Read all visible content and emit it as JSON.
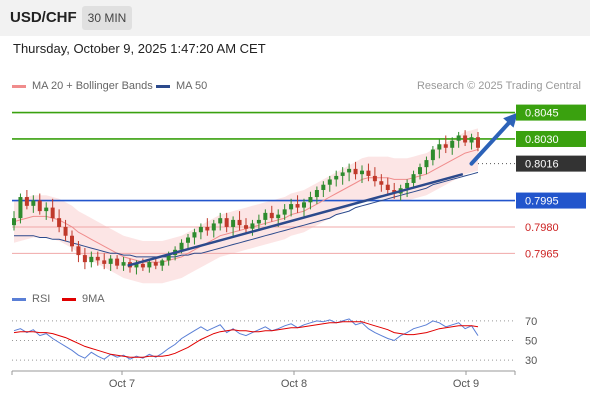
{
  "header": {
    "symbol": "USD/CHF",
    "timeframe": "30 MIN"
  },
  "datetime": "Thursday, October 9, 2025 1:47:20 AM CET",
  "legend": {
    "ma20": {
      "label": "MA 20 + Bollinger Bands",
      "color": "#f08c8c"
    },
    "ma50": {
      "label": "MA 50",
      "color": "#2c4a8c"
    }
  },
  "copyright": "Research © 2025 Trading Central",
  "rsi_legend": {
    "rsi": {
      "label": "RSI",
      "color": "#5a7fd6"
    },
    "ma9": {
      "label": "9MA",
      "color": "#e00000"
    }
  },
  "chart_data": [
    {
      "type": "candlestick",
      "pair": "USD/CHF",
      "ylim": [
        0.7947,
        0.8055
      ],
      "current_price": "0.8016",
      "x_labels": [
        "Oct 7",
        "Oct 8",
        "Oct 9"
      ],
      "levels": [
        {
          "label": "0.8045",
          "value": 0.8045,
          "kind": "resistance",
          "color": "#3aa10f"
        },
        {
          "label": "0.8030",
          "value": 0.803,
          "kind": "resistance",
          "color": "#3aa10f"
        },
        {
          "label": "0.8016",
          "value": 0.8016,
          "kind": "current",
          "color": "#333333"
        },
        {
          "label": "0.7995",
          "value": 0.7995,
          "kind": "pivot",
          "color": "#2255cc"
        },
        {
          "label": "0.7980",
          "value": 0.798,
          "kind": "support",
          "color": "#cc2222"
        },
        {
          "label": "0.7965",
          "value": 0.7965,
          "kind": "support",
          "color": "#cc2222"
        }
      ],
      "candles": [
        [
          0.7981,
          0.7989,
          0.7978,
          0.7985
        ],
        [
          0.7985,
          0.7999,
          0.7982,
          0.7997
        ],
        [
          0.7997,
          0.8001,
          0.799,
          0.7992
        ],
        [
          0.7992,
          0.7998,
          0.7988,
          0.7995
        ],
        [
          0.7995,
          0.7999,
          0.7987,
          0.7989
        ],
        [
          0.7989,
          0.7994,
          0.7984,
          0.7991
        ],
        [
          0.7991,
          0.7996,
          0.7983,
          0.7985
        ],
        [
          0.7985,
          0.799,
          0.7977,
          0.798
        ],
        [
          0.798,
          0.7984,
          0.7972,
          0.7975
        ],
        [
          0.7975,
          0.7978,
          0.7966,
          0.7969
        ],
        [
          0.7969,
          0.7972,
          0.796,
          0.7964
        ],
        [
          0.7964,
          0.7968,
          0.7956,
          0.796
        ],
        [
          0.796,
          0.7966,
          0.7957,
          0.7963
        ],
        [
          0.7963,
          0.7966,
          0.7958,
          0.7961
        ],
        [
          0.7961,
          0.7965,
          0.7956,
          0.7959
        ],
        [
          0.7959,
          0.7964,
          0.7955,
          0.7962
        ],
        [
          0.7962,
          0.7964,
          0.7956,
          0.7958
        ],
        [
          0.7958,
          0.7963,
          0.7955,
          0.796
        ],
        [
          0.796,
          0.7962,
          0.7954,
          0.7957
        ],
        [
          0.7957,
          0.7961,
          0.7953,
          0.7959
        ],
        [
          0.7959,
          0.7962,
          0.7955,
          0.7957
        ],
        [
          0.7957,
          0.7961,
          0.7954,
          0.796
        ],
        [
          0.796,
          0.7963,
          0.7956,
          0.7958
        ],
        [
          0.7958,
          0.7962,
          0.7955,
          0.7961
        ],
        [
          0.7961,
          0.7966,
          0.7958,
          0.7964
        ],
        [
          0.7964,
          0.7969,
          0.7961,
          0.7967
        ],
        [
          0.7967,
          0.7973,
          0.7965,
          0.7971
        ],
        [
          0.7971,
          0.7976,
          0.7968,
          0.7974
        ],
        [
          0.7974,
          0.7979,
          0.797,
          0.7977
        ],
        [
          0.7977,
          0.7982,
          0.7973,
          0.798
        ],
        [
          0.798,
          0.7985,
          0.7975,
          0.7978
        ],
        [
          0.7978,
          0.7984,
          0.7974,
          0.7982
        ],
        [
          0.7982,
          0.7988,
          0.7978,
          0.7985
        ],
        [
          0.7985,
          0.7988,
          0.7977,
          0.798
        ],
        [
          0.798,
          0.7986,
          0.7975,
          0.7984
        ],
        [
          0.7984,
          0.7989,
          0.7978,
          0.7981
        ],
        [
          0.7981,
          0.7985,
          0.7976,
          0.7979
        ],
        [
          0.7979,
          0.7984,
          0.7975,
          0.7982
        ],
        [
          0.7982,
          0.7987,
          0.7978,
          0.7984
        ],
        [
          0.7984,
          0.799,
          0.7981,
          0.7988
        ],
        [
          0.7988,
          0.7992,
          0.7983,
          0.7985
        ],
        [
          0.7985,
          0.799,
          0.798,
          0.7987
        ],
        [
          0.7987,
          0.7993,
          0.7984,
          0.799
        ],
        [
          0.799,
          0.7996,
          0.7986,
          0.7993
        ],
        [
          0.7993,
          0.7998,
          0.7988,
          0.7991
        ],
        [
          0.7991,
          0.7996,
          0.7986,
          0.7994
        ],
        [
          0.7994,
          0.8,
          0.799,
          0.7997
        ],
        [
          0.7997,
          0.8003,
          0.7993,
          0.8001
        ],
        [
          0.8001,
          0.8006,
          0.7997,
          0.8004
        ],
        [
          0.8004,
          0.8009,
          0.8,
          0.8007
        ],
        [
          0.8007,
          0.8012,
          0.8003,
          0.8009
        ],
        [
          0.8009,
          0.8014,
          0.8004,
          0.8011
        ],
        [
          0.8011,
          0.8016,
          0.8006,
          0.8013
        ],
        [
          0.8013,
          0.8017,
          0.8007,
          0.801
        ],
        [
          0.801,
          0.8015,
          0.8005,
          0.8012
        ],
        [
          0.8012,
          0.8016,
          0.8006,
          0.8009
        ],
        [
          0.8009,
          0.8014,
          0.8003,
          0.8006
        ],
        [
          0.8006,
          0.801,
          0.8,
          0.8004
        ],
        [
          0.8004,
          0.8008,
          0.7998,
          0.8001
        ],
        [
          0.8001,
          0.8005,
          0.7996,
          0.7999
        ],
        [
          0.7999,
          0.8004,
          0.7995,
          0.8002
        ],
        [
          0.8002,
          0.8007,
          0.7997,
          0.8005
        ],
        [
          0.8005,
          0.8012,
          0.8002,
          0.801
        ],
        [
          0.801,
          0.8016,
          0.8007,
          0.8014
        ],
        [
          0.8014,
          0.802,
          0.801,
          0.8018
        ],
        [
          0.8018,
          0.8026,
          0.8015,
          0.8024
        ],
        [
          0.8024,
          0.803,
          0.8019,
          0.8027
        ],
        [
          0.8027,
          0.8032,
          0.8022,
          0.8025
        ],
        [
          0.8025,
          0.8031,
          0.8021,
          0.8029
        ],
        [
          0.8029,
          0.8034,
          0.8025,
          0.8032
        ],
        [
          0.8032,
          0.8035,
          0.8026,
          0.8028
        ],
        [
          0.8028,
          0.8033,
          0.8024,
          0.8031
        ],
        [
          0.8031,
          0.8034,
          0.8023,
          0.8025
        ]
      ],
      "ma20": [
        0.7983,
        0.7984,
        0.7985,
        0.7986,
        0.7986,
        0.7986,
        0.7985,
        0.7984,
        0.7982,
        0.798,
        0.7977,
        0.7975,
        0.7973,
        0.7971,
        0.7969,
        0.7967,
        0.7965,
        0.7963,
        0.7962,
        0.7961,
        0.796,
        0.796,
        0.796,
        0.796,
        0.7961,
        0.7962,
        0.7963,
        0.7965,
        0.7967,
        0.7969,
        0.7971,
        0.7973,
        0.7975,
        0.7976,
        0.7977,
        0.7978,
        0.7979,
        0.798,
        0.7981,
        0.7982,
        0.7983,
        0.7984,
        0.7985,
        0.7987,
        0.7988,
        0.7989,
        0.7991,
        0.7993,
        0.7995,
        0.7997,
        0.7999,
        0.8001,
        0.8003,
        0.8005,
        0.8007,
        0.8008,
        0.8008,
        0.8008,
        0.8008,
        0.8007,
        0.8007,
        0.8007,
        0.8008,
        0.8009,
        0.801,
        0.8012,
        0.8014,
        0.8016,
        0.8018,
        0.802,
        0.8022,
        0.8023,
        0.8024
      ],
      "ma50": [
        0.7975,
        0.7975,
        0.7975,
        0.7975,
        0.7974,
        0.7974,
        0.7973,
        0.7973,
        0.7972,
        0.7971,
        0.797,
        0.7969,
        0.7968,
        0.7967,
        0.7966,
        0.7965,
        0.7965,
        0.7964,
        0.7964,
        0.7963,
        0.7963,
        0.7963,
        0.7963,
        0.7963,
        0.7963,
        0.7963,
        0.7964,
        0.7964,
        0.7965,
        0.7965,
        0.7966,
        0.7967,
        0.7968,
        0.7969,
        0.797,
        0.7971,
        0.7972,
        0.7973,
        0.7974,
        0.7975,
        0.7976,
        0.7977,
        0.7978,
        0.7979,
        0.798,
        0.7981,
        0.7982,
        0.7983,
        0.7984,
        0.7985,
        0.7987,
        0.7988,
        0.7989,
        0.7991,
        0.7992,
        0.7993,
        0.7994,
        0.7995,
        0.7996,
        0.7997,
        0.7998,
        0.7999,
        0.8,
        0.8001,
        0.8002,
        0.8004,
        0.8005,
        0.8006,
        0.8007,
        0.8008,
        0.8009,
        0.801,
        0.8011
      ],
      "bb_width": 0.0012,
      "trendlines": [
        {
          "from": [
            0.2,
            0.7958
          ],
          "to": [
            0.78,
            0.801
          ],
          "color": "#2c4a8c"
        }
      ],
      "forecast_arrow": {
        "from": [
          0.795,
          0.8016
        ],
        "to": [
          0.875,
          0.8045
        ],
        "color": "#2c62b8"
      }
    },
    {
      "type": "line",
      "title": "RSI",
      "ylim": [
        22,
        78
      ],
      "yticks": [
        70,
        50,
        30
      ],
      "series": [
        {
          "name": "RSI",
          "color": "#5a7fd6",
          "values": [
            60,
            62,
            58,
            61,
            55,
            57,
            52,
            48,
            44,
            40,
            35,
            32,
            38,
            34,
            31,
            36,
            33,
            35,
            31,
            34,
            32,
            36,
            33,
            37,
            42,
            46,
            52,
            56,
            60,
            64,
            60,
            63,
            66,
            58,
            62,
            57,
            55,
            58,
            61,
            64,
            60,
            62,
            65,
            67,
            63,
            66,
            68,
            70,
            69,
            71,
            68,
            70,
            72,
            66,
            68,
            62,
            58,
            55,
            52,
            50,
            55,
            58,
            62,
            64,
            66,
            70,
            68,
            64,
            66,
            68,
            62,
            65,
            55
          ]
        },
        {
          "name": "9MA",
          "color": "#e00000",
          "values": [
            58,
            59,
            59,
            59,
            58,
            58,
            57,
            55,
            53,
            50,
            47,
            44,
            42,
            40,
            38,
            36,
            35,
            34,
            33,
            33,
            33,
            34,
            34,
            34,
            35,
            37,
            40,
            43,
            47,
            51,
            54,
            57,
            59,
            60,
            61,
            60,
            60,
            59,
            59,
            60,
            60,
            61,
            62,
            63,
            63,
            64,
            65,
            66,
            67,
            68,
            68,
            69,
            69,
            69,
            69,
            67,
            65,
            63,
            61,
            58,
            57,
            56,
            56,
            57,
            58,
            60,
            62,
            63,
            64,
            65,
            65,
            65,
            64
          ]
        }
      ]
    }
  ]
}
